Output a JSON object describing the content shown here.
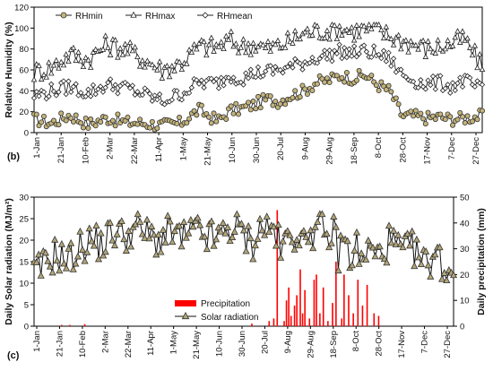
{
  "panel_labels": [
    "(b)",
    "(c)"
  ],
  "chart_data": [
    {
      "type": "line",
      "panel": "(b)",
      "xlabel": "",
      "ylabel": "Relative Humidity (%)",
      "ylim": [
        0,
        120
      ],
      "yticks": [
        0,
        20,
        40,
        60,
        80,
        100,
        120
      ],
      "xlim": [
        1,
        365
      ],
      "xticks": [
        "1-Jan",
        "21-Jan",
        "10-Feb",
        "2-Mar",
        "22-Mar",
        "11-Apr",
        "1-May",
        "21-May",
        "10-Jun",
        "30-Jun",
        "20-Jul",
        "9-Aug",
        "29-Aug",
        "18-Sep",
        "8-Oct",
        "28-Oct",
        "17-Nov",
        "7-Dec",
        "27-Dec"
      ],
      "legend": {
        "placement": "top-left",
        "entries": [
          "RHmin",
          "RHmax",
          "RHmean"
        ]
      },
      "grid": false,
      "series": [
        {
          "name": "RHmin",
          "marker": "circle",
          "color": "#c4b47a",
          "x": [
            1,
            15,
            30,
            45,
            60,
            75,
            90,
            105,
            120,
            135,
            150,
            160,
            170,
            180,
            190,
            200,
            210,
            220,
            230,
            240,
            250,
            260,
            270,
            280,
            290,
            300,
            310,
            320,
            330,
            340,
            350,
            365
          ],
          "y": [
            13,
            9,
            17,
            8,
            14,
            10,
            9,
            7,
            9,
            22,
            11,
            21,
            23,
            27,
            32,
            30,
            36,
            40,
            48,
            50,
            55,
            52,
            55,
            46,
            40,
            16,
            16,
            14,
            15,
            13,
            14,
            16
          ]
        },
        {
          "name": "RHmax",
          "marker": "triangle",
          "color": "#ffffff",
          "x": [
            1,
            15,
            30,
            45,
            60,
            75,
            90,
            105,
            120,
            135,
            150,
            160,
            170,
            180,
            190,
            200,
            210,
            220,
            230,
            240,
            250,
            260,
            270,
            280,
            290,
            300,
            310,
            320,
            330,
            340,
            350,
            365
          ],
          "y": [
            58,
            62,
            75,
            70,
            84,
            80,
            70,
            60,
            66,
            82,
            82,
            88,
            82,
            85,
            80,
            83,
            88,
            95,
            97,
            98,
            100,
            97,
            99,
            98,
            92,
            88,
            84,
            80,
            82,
            85,
            90,
            62
          ]
        },
        {
          "name": "RHmean",
          "marker": "diamond",
          "color": "#ffffff",
          "x": [
            1,
            15,
            30,
            45,
            60,
            75,
            90,
            105,
            120,
            135,
            150,
            160,
            170,
            180,
            190,
            200,
            210,
            220,
            230,
            240,
            250,
            260,
            270,
            280,
            290,
            300,
            310,
            320,
            330,
            340,
            350,
            365
          ],
          "y": [
            35,
            40,
            44,
            38,
            46,
            43,
            37,
            30,
            37,
            48,
            47,
            55,
            52,
            57,
            58,
            60,
            63,
            67,
            72,
            74,
            78,
            76,
            78,
            75,
            70,
            55,
            50,
            46,
            48,
            44,
            50,
            40
          ]
        }
      ]
    },
    {
      "type": "line",
      "panel": "(c)",
      "xlabel": "",
      "ylabel": "Daily Solar radiation (MJ/m²)",
      "ylabel_right": "Daily precipitation (mm)",
      "ylim": [
        0,
        30
      ],
      "yticks": [
        0,
        5,
        10,
        15,
        20,
        25,
        30
      ],
      "ylim_right": [
        0,
        50
      ],
      "yticks_right": [
        0,
        10,
        20,
        30,
        40,
        50
      ],
      "xlim": [
        1,
        365
      ],
      "xticks": [
        "1-Jan",
        "21-Jan",
        "10-Feb",
        "2-Mar",
        "22-Mar",
        "11-Apr",
        "1-May",
        "21-May",
        "10-Jun",
        "30-Jun",
        "20-Jul",
        "9-Aug",
        "29-Aug",
        "18-Sep",
        "8-Oct",
        "28-Oct",
        "17-Nov",
        "7-Dec",
        "27-Dec"
      ],
      "legend": {
        "placement": "bottom-center",
        "entries": [
          "Precipitation",
          "Solar radiation"
        ]
      },
      "grid": false,
      "series": [
        {
          "name": "Solar radiation",
          "marker": "triangle",
          "color": "#b3a678",
          "x": [
            1,
            10,
            20,
            30,
            40,
            50,
            60,
            70,
            80,
            90,
            100,
            110,
            120,
            130,
            140,
            150,
            160,
            170,
            180,
            190,
            200,
            205,
            210,
            215,
            220,
            225,
            230,
            235,
            240,
            245,
            250,
            255,
            260,
            265,
            270,
            275,
            280,
            285,
            290,
            300,
            310,
            320,
            330,
            340,
            350,
            360,
            365
          ],
          "y": [
            12,
            14,
            17,
            15,
            18,
            20,
            19,
            22,
            21,
            23,
            21,
            20,
            22,
            20,
            22,
            21,
            20,
            23,
            22,
            19,
            24,
            22,
            23,
            17,
            20,
            21,
            23,
            18,
            24,
            21,
            24,
            19,
            23,
            17,
            21,
            15,
            20,
            14,
            18,
            16,
            20,
            17,
            18,
            14,
            17,
            12,
            14
          ]
        },
        {
          "name": "Precipitation",
          "type": "bar",
          "axis": "right",
          "color": "#ff0000",
          "x": [
            25,
            32,
            45,
            190,
            205,
            209,
            212,
            218,
            220,
            222,
            224,
            227,
            229,
            232,
            234,
            236,
            240,
            244,
            246,
            249,
            252,
            256,
            260,
            263,
            268,
            270,
            274,
            278,
            282,
            286,
            290,
            296,
            300
          ],
          "y": [
            0.5,
            0.5,
            0.8,
            1,
            2,
            3,
            45,
            2,
            10,
            15,
            4,
            8,
            12,
            22,
            5,
            14,
            3,
            18,
            20,
            5,
            15,
            2,
            9,
            25,
            3,
            20,
            12,
            5,
            18,
            8,
            16,
            5,
            4
          ]
        }
      ]
    }
  ]
}
